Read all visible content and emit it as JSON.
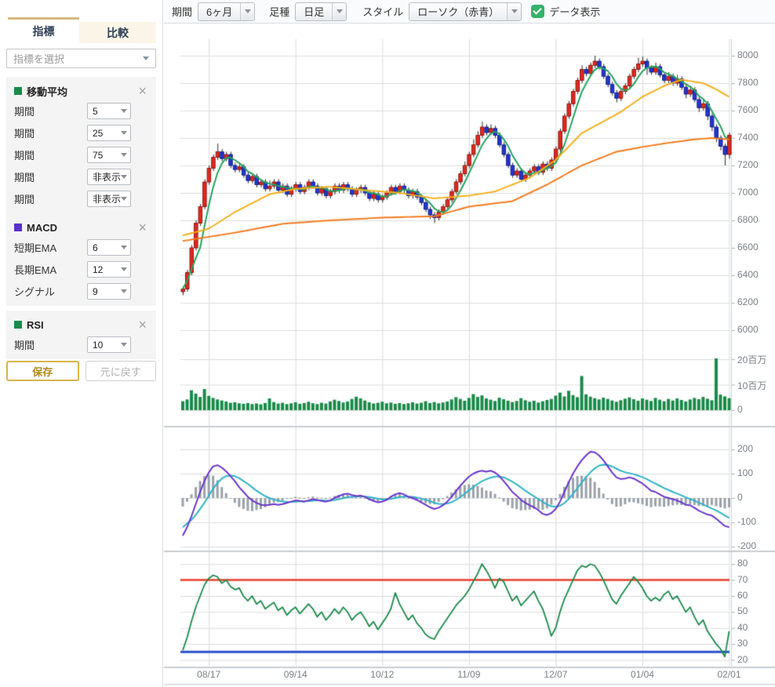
{
  "sidebar": {
    "tabs": [
      {
        "label": "指標",
        "active": true
      },
      {
        "label": "比較",
        "active": false
      }
    ],
    "indicator_select_placeholder": "指標を選択",
    "sections": [
      {
        "title": "移動平均",
        "color": "#1b8a4a",
        "rows": [
          {
            "label": "期間",
            "value": "5"
          },
          {
            "label": "期間",
            "value": "25"
          },
          {
            "label": "期間",
            "value": "75"
          },
          {
            "label": "期間",
            "value": "非表示"
          },
          {
            "label": "期間",
            "value": "非表示"
          }
        ]
      },
      {
        "title": "MACD",
        "color": "#5a2fd0",
        "rows": [
          {
            "label": "短期EMA",
            "value": "6"
          },
          {
            "label": "長期EMA",
            "value": "12"
          },
          {
            "label": "シグナル",
            "value": "9"
          }
        ]
      },
      {
        "title": "RSI",
        "color": "#1b8a4a",
        "rows": [
          {
            "label": "期間",
            "value": "10"
          }
        ]
      }
    ],
    "save_label": "保存",
    "reset_label": "元に戻す"
  },
  "toolbar": {
    "period_label": "期間",
    "period_value": "6ヶ月",
    "bartype_label": "足種",
    "bartype_value": "日足",
    "style_label": "スタイル",
    "style_value": "ローソク（赤青）",
    "data_display_label": "データ表示",
    "data_display_checked": true
  },
  "chart_data": {
    "type": "candlestick",
    "x_labels": [
      {
        "label": "08/17",
        "i": 6
      },
      {
        "label": "09/14",
        "i": 26
      },
      {
        "label": "10/12",
        "i": 46
      },
      {
        "label": "11/09",
        "i": 66
      },
      {
        "label": "12/07",
        "i": 86
      },
      {
        "label": "01/04",
        "i": 106
      },
      {
        "label": "02/01",
        "i": 126
      }
    ],
    "price_panel": {
      "ticks": [
        8000,
        7800,
        7600,
        7400,
        7200,
        7000,
        6800,
        6600,
        6400,
        6200,
        6000
      ],
      "ylim": [
        5950,
        8120
      ],
      "up_color": "#e0291f",
      "up_border": "#8f1710",
      "down_color": "#2336cf",
      "down_border": "#121f8f",
      "open": [
        6280,
        6300,
        6420,
        6600,
        6780,
        6900,
        7080,
        7180,
        7260,
        7300,
        7250,
        7280,
        7200,
        7170,
        7190,
        7130,
        7090,
        7120,
        7060,
        7080,
        7030,
        7050,
        7080,
        7020,
        7050,
        6990,
        7030,
        7060,
        7010,
        7040,
        7080,
        7050,
        7000,
        7030,
        6980,
        7010,
        7050,
        7020,
        7060,
        7030,
        6990,
        7020,
        7040,
        7000,
        6960,
        6990,
        6950,
        6970,
        7000,
        7040,
        7010,
        7050,
        7020,
        6980,
        7010,
        6970,
        6930,
        6880,
        6840,
        6820,
        6860,
        6900,
        6950,
        7010,
        7080,
        7140,
        7200,
        7280,
        7350,
        7420,
        7480,
        7440,
        7470,
        7420,
        7350,
        7280,
        7200,
        7130,
        7160,
        7100,
        7130,
        7160,
        7190,
        7150,
        7210,
        7180,
        7240,
        7320,
        7450,
        7560,
        7650,
        7740,
        7820,
        7900,
        7870,
        7930,
        7960,
        7920,
        7850,
        7790,
        7730,
        7690,
        7740,
        7780,
        7850,
        7900,
        7940,
        7960,
        7910,
        7880,
        7920,
        7860,
        7820,
        7850,
        7800,
        7830,
        7770,
        7720,
        7750,
        7680,
        7620,
        7650,
        7560,
        7480,
        7400,
        7340,
        7280
      ],
      "high": [
        6320,
        6440,
        6620,
        6800,
        6920,
        7100,
        7200,
        7280,
        7360,
        7320,
        7300,
        7300,
        7220,
        7210,
        7210,
        7150,
        7140,
        7140,
        7100,
        7100,
        7090,
        7100,
        7100,
        7070,
        7070,
        7050,
        7080,
        7080,
        7060,
        7100,
        7100,
        7070,
        7050,
        7050,
        7030,
        7070,
        7070,
        7080,
        7080,
        7050,
        7040,
        7060,
        7060,
        7020,
        7010,
        7010,
        6990,
        7020,
        7060,
        7060,
        7070,
        7070,
        7040,
        7030,
        7030,
        6990,
        6950,
        6900,
        6860,
        6880,
        6920,
        6970,
        7030,
        7100,
        7160,
        7230,
        7300,
        7390,
        7450,
        7520,
        7500,
        7500,
        7490,
        7440,
        7370,
        7300,
        7220,
        7180,
        7180,
        7150,
        7180,
        7210,
        7210,
        7230,
        7230,
        7260,
        7340,
        7470,
        7580,
        7670,
        7760,
        7840,
        7930,
        7920,
        7950,
        8000,
        7980,
        7940,
        7870,
        7810,
        7750,
        7760,
        7800,
        7870,
        7920,
        7985,
        7995,
        7980,
        7930,
        7950,
        7940,
        7880,
        7880,
        7870,
        7860,
        7850,
        7790,
        7780,
        7770,
        7700,
        7680,
        7670,
        7580,
        7500,
        7420,
        7360,
        7440
      ],
      "low": [
        6255,
        6280,
        6400,
        6580,
        6760,
        6880,
        7060,
        7160,
        7240,
        7230,
        7230,
        7180,
        7150,
        7150,
        7110,
        7070,
        7070,
        7040,
        7040,
        7010,
        7010,
        7030,
        7000,
        7000,
        6970,
        6970,
        7010,
        6990,
        6990,
        7020,
        7030,
        6980,
        6980,
        6960,
        6960,
        6990,
        7000,
        7000,
        7010,
        6970,
        6970,
        7000,
        6980,
        6940,
        6940,
        6930,
        6930,
        6950,
        6980,
        6990,
        6990,
        7000,
        6960,
        6960,
        6950,
        6910,
        6860,
        6810,
        6780,
        6800,
        6840,
        6880,
        6930,
        6990,
        7060,
        7120,
        7180,
        7260,
        7330,
        7400,
        7420,
        7420,
        7400,
        7330,
        7260,
        7180,
        7110,
        7110,
        7080,
        7080,
        7110,
        7140,
        7130,
        7130,
        7160,
        7160,
        7220,
        7300,
        7430,
        7540,
        7630,
        7720,
        7800,
        7850,
        7850,
        7910,
        7900,
        7830,
        7770,
        7710,
        7660,
        7670,
        7720,
        7760,
        7830,
        7880,
        7920,
        7860,
        7860,
        7860,
        7840,
        7800,
        7800,
        7780,
        7780,
        7750,
        7690,
        7700,
        7660,
        7590,
        7600,
        7530,
        7450,
        7370,
        7310,
        7200,
        7250
      ],
      "close": [
        6300,
        6420,
        6600,
        6780,
        6900,
        7080,
        7180,
        7260,
        7300,
        7250,
        7280,
        7200,
        7170,
        7190,
        7130,
        7090,
        7120,
        7060,
        7080,
        7030,
        7050,
        7080,
        7020,
        7050,
        6990,
        7030,
        7060,
        7010,
        7040,
        7080,
        7050,
        7000,
        7030,
        6980,
        7010,
        7050,
        7020,
        7060,
        7030,
        6990,
        7020,
        7040,
        7000,
        6960,
        6990,
        6950,
        6970,
        7000,
        7040,
        7010,
        7050,
        7020,
        6980,
        7010,
        6970,
        6930,
        6880,
        6840,
        6820,
        6860,
        6900,
        6950,
        7010,
        7080,
        7140,
        7200,
        7280,
        7350,
        7420,
        7480,
        7440,
        7470,
        7420,
        7350,
        7280,
        7200,
        7130,
        7160,
        7100,
        7130,
        7160,
        7190,
        7150,
        7210,
        7180,
        7240,
        7320,
        7450,
        7560,
        7650,
        7740,
        7820,
        7900,
        7870,
        7930,
        7960,
        7920,
        7850,
        7790,
        7730,
        7690,
        7740,
        7780,
        7850,
        7900,
        7940,
        7960,
        7910,
        7880,
        7920,
        7860,
        7820,
        7850,
        7800,
        7830,
        7770,
        7720,
        7750,
        7680,
        7620,
        7650,
        7560,
        7480,
        7400,
        7340,
        7280,
        7420
      ],
      "ma": [
        {
          "name": "ma5",
          "period": 5,
          "color": "#27a35f",
          "source": "close"
        },
        {
          "name": "ma25",
          "period": 25,
          "color": "#f2b01e",
          "anchors": {
            "i": [
              0,
              6,
              12,
              20,
              26,
              34,
              42,
              50,
              58,
              66,
              72,
              80,
              86,
              92,
              101,
              106,
              111,
              115,
              120,
              123,
              126
            ],
            "v": [
              6690,
              6740,
              6860,
              6990,
              7030,
              7045,
              7020,
              7000,
              6960,
              6980,
              7010,
              7110,
              7240,
              7435,
              7590,
              7700,
              7780,
              7825,
              7800,
              7755,
              7700
            ]
          }
        },
        {
          "name": "ma75",
          "period": 75,
          "color": "#f47b20",
          "anchors": {
            "i": [
              0,
              12,
              23,
              34,
              46,
              58,
              66,
              76,
              84,
              92,
              100,
              106,
              112,
              118,
              122,
              126
            ],
            "v": [
              6650,
              6710,
              6775,
              6800,
              6820,
              6830,
              6900,
              6940,
              7060,
              7200,
              7300,
              7335,
              7365,
              7390,
              7400,
              7390
            ]
          }
        }
      ]
    },
    "volume_panel": {
      "unit": "百万",
      "ticks": [
        {
          "label": "20百万",
          "value": 20
        },
        {
          "label": "10百万",
          "value": 10
        },
        {
          "label": "0",
          "value": 0
        }
      ],
      "bar_color": "#1b8a4a",
      "values": [
        3.5,
        4.2,
        7.8,
        6.5,
        5.2,
        8.3,
        5.6,
        4.8,
        4.2,
        3.8,
        3.4,
        2.9,
        3.1,
        2.7,
        2.5,
        2.8,
        2.4,
        2.6,
        2.3,
        2.8,
        4.6,
        3.2,
        2.6,
        2.9,
        2.4,
        2.7,
        3.1,
        2.5,
        2.8,
        3.3,
        2.7,
        2.4,
        2.9,
        2.6,
        3.4,
        4.1,
        3.6,
        3.0,
        3.4,
        4.4,
        5.3,
        4.6,
        3.8,
        3.1,
        2.6,
        2.9,
        3.3,
        2.7,
        3.0,
        2.5,
        2.8,
        2.4,
        2.7,
        3.1,
        2.6,
        2.9,
        3.5,
        2.8,
        3.2,
        2.7,
        3.0,
        3.4,
        4.2,
        5.1,
        4.4,
        3.7,
        4.8,
        6.3,
        5.2,
        5.8,
        4.6,
        4.1,
        3.6,
        4.9,
        4.3,
        3.7,
        3.2,
        3.6,
        4.7,
        3.9,
        3.3,
        3.7,
        3.0,
        3.5,
        4.0,
        4.4,
        5.7,
        6.9,
        5.4,
        7.6,
        5.9,
        5.1,
        13.4,
        6.2,
        5.3,
        4.7,
        4.2,
        4.9,
        4.4,
        3.8,
        3.3,
        3.9,
        4.5,
        5.0,
        4.3,
        3.7,
        4.6,
        4.1,
        3.6,
        4.8,
        4.1,
        3.5,
        4.4,
        3.8,
        4.6,
        4.0,
        3.4,
        4.2,
        4.8,
        4.3,
        5.2,
        4.5,
        3.9,
        20.3,
        6.1,
        5.4,
        4.7
      ]
    },
    "macd_panel": {
      "ticks": [
        200,
        100,
        0,
        -100,
        -200
      ],
      "macd_color": "#6a35cc",
      "signal_color": "#2fb3c7",
      "hist_color": "#9aa1a9",
      "macd": [
        -155,
        -120,
        -75,
        -25,
        25,
        70,
        105,
        130,
        135,
        125,
        110,
        90,
        70,
        45,
        25,
        5,
        -10,
        -20,
        -28,
        -30,
        -28,
        -25,
        -28,
        -25,
        -20,
        -15,
        -10,
        -12,
        -15,
        -10,
        -5,
        -8,
        -12,
        -15,
        -10,
        0,
        8,
        15,
        18,
        12,
        8,
        10,
        5,
        -5,
        -12,
        -18,
        -15,
        -8,
        5,
        15,
        20,
        15,
        5,
        0,
        -8,
        -18,
        -28,
        -38,
        -45,
        -40,
        -30,
        -15,
        5,
        28,
        50,
        70,
        88,
        100,
        108,
        112,
        108,
        112,
        105,
        90,
        70,
        48,
        25,
        10,
        -8,
        -20,
        -30,
        -38,
        -50,
        -65,
        -70,
        -62,
        -45,
        -15,
        25,
        65,
        100,
        130,
        155,
        175,
        190,
        188,
        175,
        155,
        130,
        105,
        85,
        78,
        80,
        85,
        80,
        70,
        60,
        45,
        30,
        25,
        15,
        5,
        0,
        -5,
        -10,
        -18,
        -28,
        -30,
        -40,
        -52,
        -60,
        -68,
        -72,
        -85,
        -100,
        -115,
        -120
      ],
      "signal": [
        -120,
        -105,
        -90,
        -70,
        -45,
        -20,
        10,
        38,
        62,
        80,
        90,
        92,
        90,
        82,
        70,
        58,
        44,
        30,
        18,
        8,
        0,
        -6,
        -11,
        -14,
        -16,
        -16,
        -15,
        -14,
        -14,
        -13,
        -11,
        -10,
        -10,
        -11,
        -11,
        -8,
        -5,
        -1,
        3,
        5,
        6,
        7,
        6,
        4,
        1,
        -3,
        -6,
        -6,
        -4,
        0,
        4,
        6,
        6,
        5,
        2,
        -2,
        -7,
        -13,
        -20,
        -24,
        -25,
        -23,
        -17,
        -8,
        4,
        17,
        31,
        45,
        58,
        69,
        77,
        84,
        88,
        88,
        85,
        77,
        67,
        56,
        43,
        30,
        18,
        7,
        -4,
        -16,
        -27,
        -34,
        -36,
        -32,
        -21,
        -4,
        17,
        40,
        63,
        85,
        106,
        122,
        133,
        137,
        136,
        130,
        121,
        112,
        106,
        102,
        98,
        92,
        86,
        78,
        68,
        59,
        50,
        41,
        33,
        25,
        18,
        11,
        3,
        -4,
        -11,
        -19,
        -27,
        -35,
        -43,
        -51,
        -61,
        -72,
        -82
      ]
    },
    "rsi_panel": {
      "ticks": [
        80,
        70,
        60,
        50,
        40,
        30,
        20
      ],
      "line_color": "#1b8a4a",
      "overbought": {
        "value": 70,
        "color": "#e8402a"
      },
      "oversold": {
        "value": 25,
        "color": "#2a52cc"
      },
      "values": [
        26,
        34,
        44,
        53,
        60,
        67,
        71,
        73,
        72,
        68,
        70,
        66,
        64,
        65,
        60,
        57,
        60,
        55,
        57,
        52,
        54,
        56,
        51,
        53,
        48,
        51,
        53,
        49,
        52,
        55,
        52,
        47,
        50,
        45,
        48,
        52,
        49,
        53,
        50,
        45,
        48,
        50,
        46,
        41,
        44,
        39,
        43,
        47,
        52,
        62,
        55,
        50,
        45,
        48,
        43,
        40,
        36,
        34,
        33,
        38,
        42,
        46,
        50,
        54,
        57,
        60,
        64,
        69,
        74,
        80,
        76,
        71,
        65,
        71,
        69,
        63,
        57,
        60,
        54,
        57,
        60,
        63,
        57,
        52,
        44,
        35,
        40,
        50,
        58,
        64,
        70,
        76,
        79,
        78,
        80,
        79,
        75,
        70,
        64,
        58,
        55,
        60,
        64,
        68,
        72,
        69,
        65,
        60,
        57,
        59,
        57,
        61,
        63,
        58,
        60,
        55,
        50,
        53,
        47,
        42,
        45,
        38,
        34,
        30,
        27,
        22,
        38
      ]
    }
  }
}
